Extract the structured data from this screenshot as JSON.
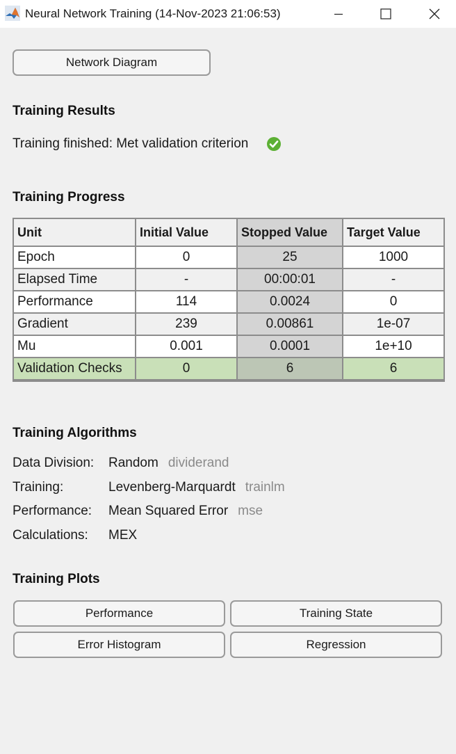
{
  "window": {
    "title": "Neural Network Training (14-Nov-2023 21:06:53)"
  },
  "network_diagram_label": "Network Diagram",
  "results": {
    "title": "Training Results",
    "status": "Training finished: Met validation criterion",
    "status_color": "#5cb034"
  },
  "progress": {
    "title": "Training Progress",
    "headers": [
      "Unit",
      "Initial Value",
      "Stopped Value",
      "Target Value"
    ],
    "rows": [
      [
        "Epoch",
        "0",
        "25",
        "1000"
      ],
      [
        "Elapsed Time",
        "-",
        "00:00:01",
        "-"
      ],
      [
        "Performance",
        "114",
        "0.0024",
        "0"
      ],
      [
        "Gradient",
        "239",
        "0.00861",
        "1e-07"
      ],
      [
        "Mu",
        "0.001",
        "0.0001",
        "1e+10"
      ],
      [
        "Validation Checks",
        "0",
        "6",
        "6"
      ]
    ],
    "highlight_color": "#c9e0b8"
  },
  "algorithms": {
    "title": "Training Algorithms",
    "items": [
      {
        "label": "Data Division:",
        "value": "Random",
        "function": "dividerand"
      },
      {
        "label": "Training:",
        "value": "Levenberg-Marquardt",
        "function": "trainlm"
      },
      {
        "label": "Performance:",
        "value": "Mean Squared Error",
        "function": "mse"
      },
      {
        "label": "Calculations:",
        "value": "MEX",
        "function": ""
      }
    ]
  },
  "plots": {
    "title": "Training Plots",
    "buttons": [
      "Performance",
      "Training State",
      "Error Histogram",
      "Regression"
    ]
  }
}
